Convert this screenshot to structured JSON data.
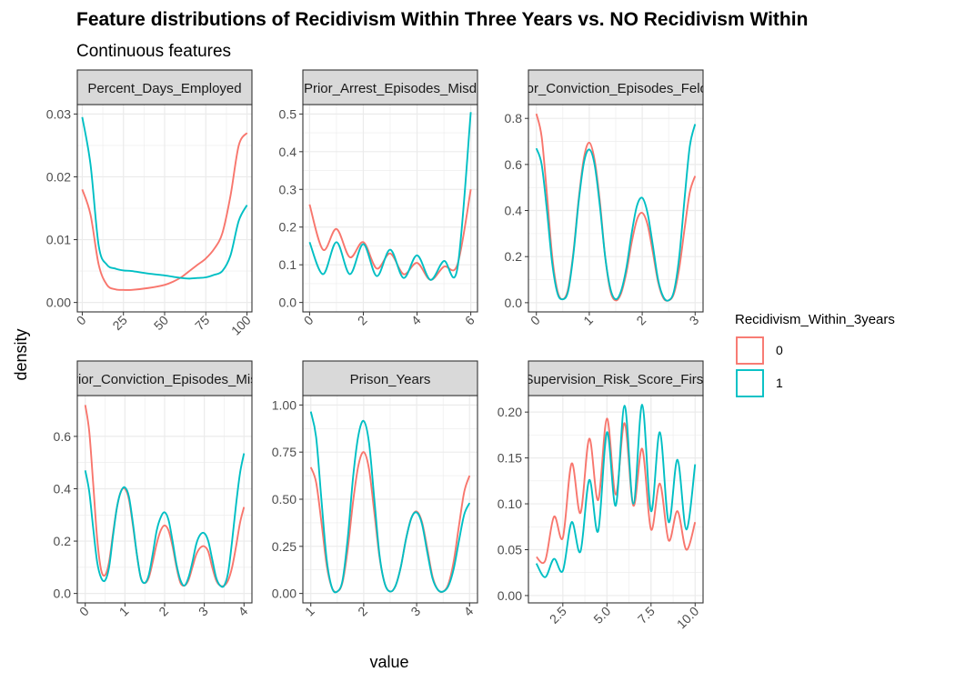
{
  "title": "Feature distributions of Recidivism Within Three Years vs. NO Recidivism Within",
  "subtitle": "Continuous features",
  "xlabel": "value",
  "ylabel": "density",
  "legend": {
    "title": "Recidivism_Within_3years",
    "position": "right",
    "entries": [
      {
        "label": "0",
        "color": "#F8766D"
      },
      {
        "label": "1",
        "color": "#00BFC4"
      }
    ]
  },
  "colors": {
    "strip_fill": "#d9d9d9",
    "grid": "#ebebeb",
    "panel_border": "#333333"
  },
  "chart_data": [
    {
      "type": "line",
      "strip": "Percent_Days_Employed",
      "xlim": [
        -3,
        103
      ],
      "ylim": [
        -0.0015,
        0.0315
      ],
      "xticks": [
        0,
        25,
        50,
        75,
        100
      ],
      "xtick_labels": [
        "0",
        "25",
        "50",
        "75",
        "100"
      ],
      "yticks": [
        0.0,
        0.01,
        0.02,
        0.03
      ],
      "ytick_labels": [
        "0.00",
        "0.01",
        "0.02",
        "0.03"
      ],
      "series": [
        {
          "name": "0",
          "x": [
            0,
            5,
            10,
            15,
            20,
            25,
            30,
            40,
            50,
            55,
            60,
            65,
            70,
            75,
            80,
            85,
            90,
            95,
            100
          ],
          "y": [
            0.018,
            0.014,
            0.006,
            0.0028,
            0.0021,
            0.002,
            0.002,
            0.0023,
            0.0028,
            0.0033,
            0.004,
            0.005,
            0.006,
            0.007,
            0.0085,
            0.011,
            0.017,
            0.025,
            0.027
          ]
        },
        {
          "name": "1",
          "x": [
            0,
            5,
            10,
            15,
            20,
            25,
            30,
            40,
            50,
            55,
            60,
            65,
            70,
            75,
            80,
            85,
            90,
            95,
            100
          ],
          "y": [
            0.0295,
            0.022,
            0.009,
            0.006,
            0.0054,
            0.0051,
            0.005,
            0.0046,
            0.0043,
            0.0041,
            0.0039,
            0.0038,
            0.0039,
            0.004,
            0.0044,
            0.005,
            0.0075,
            0.013,
            0.0155
          ]
        }
      ]
    },
    {
      "type": "line",
      "strip": "Prior_Arrest_Episodes_Misd",
      "xlim": [
        -0.25,
        6.25
      ],
      "ylim": [
        -0.025,
        0.525
      ],
      "xticks": [
        0,
        2,
        4,
        6
      ],
      "xtick_labels": [
        "0",
        "2",
        "4",
        "6"
      ],
      "yticks": [
        0.0,
        0.1,
        0.2,
        0.3,
        0.4,
        0.5
      ],
      "ytick_labels": [
        "0.0",
        "0.1",
        "0.2",
        "0.3",
        "0.4",
        "0.5"
      ],
      "series": [
        {
          "name": "0",
          "x": [
            0,
            0.5,
            1,
            1.5,
            2,
            2.5,
            3,
            3.5,
            4,
            4.5,
            5,
            5.5,
            6
          ],
          "y": [
            0.26,
            0.14,
            0.195,
            0.12,
            0.16,
            0.09,
            0.13,
            0.075,
            0.105,
            0.06,
            0.095,
            0.1,
            0.3
          ]
        },
        {
          "name": "1",
          "x": [
            0,
            0.5,
            1,
            1.5,
            2,
            2.5,
            3,
            3.5,
            4,
            4.5,
            5,
            5.5,
            6
          ],
          "y": [
            0.16,
            0.075,
            0.16,
            0.075,
            0.155,
            0.07,
            0.14,
            0.065,
            0.125,
            0.06,
            0.11,
            0.09,
            0.505
          ]
        }
      ]
    },
    {
      "type": "line",
      "strip": "Prior_Conviction_Episodes_Felony",
      "xlim": [
        -0.15,
        3.15
      ],
      "ylim": [
        -0.04,
        0.86
      ],
      "xticks": [
        0,
        1,
        2,
        3
      ],
      "xtick_labels": [
        "0",
        "1",
        "2",
        "3"
      ],
      "yticks": [
        0.0,
        0.2,
        0.4,
        0.6,
        0.8
      ],
      "ytick_labels": [
        "0.0",
        "0.2",
        "0.4",
        "0.6",
        "0.8"
      ],
      "series": [
        {
          "name": "0",
          "x": [
            0,
            0.1,
            0.2,
            0.3,
            0.4,
            0.5,
            0.6,
            0.7,
            0.8,
            0.9,
            1,
            1.1,
            1.2,
            1.3,
            1.4,
            1.5,
            1.6,
            1.7,
            1.8,
            1.9,
            2,
            2.1,
            2.2,
            2.3,
            2.4,
            2.5,
            2.6,
            2.7,
            2.8,
            2.9,
            3
          ],
          "y": [
            0.82,
            0.72,
            0.47,
            0.2,
            0.05,
            0.015,
            0.06,
            0.22,
            0.45,
            0.63,
            0.695,
            0.62,
            0.44,
            0.2,
            0.05,
            0.01,
            0.04,
            0.13,
            0.26,
            0.36,
            0.39,
            0.34,
            0.22,
            0.09,
            0.02,
            0.01,
            0.04,
            0.15,
            0.32,
            0.48,
            0.55
          ]
        },
        {
          "name": "1",
          "x": [
            0,
            0.1,
            0.2,
            0.3,
            0.4,
            0.5,
            0.6,
            0.7,
            0.8,
            0.9,
            1,
            1.1,
            1.2,
            1.3,
            1.4,
            1.5,
            1.6,
            1.7,
            1.8,
            1.9,
            2,
            2.1,
            2.2,
            2.3,
            2.4,
            2.5,
            2.6,
            2.7,
            2.8,
            2.9,
            3
          ],
          "y": [
            0.67,
            0.6,
            0.4,
            0.17,
            0.04,
            0.015,
            0.05,
            0.21,
            0.44,
            0.61,
            0.665,
            0.6,
            0.42,
            0.2,
            0.06,
            0.015,
            0.05,
            0.15,
            0.3,
            0.42,
            0.455,
            0.39,
            0.25,
            0.1,
            0.025,
            0.01,
            0.05,
            0.2,
            0.45,
            0.68,
            0.775
          ]
        }
      ]
    },
    {
      "type": "line",
      "strip": "Prior_Conviction_Episodes_Misd",
      "xlim": [
        -0.2,
        4.2
      ],
      "ylim": [
        -0.036,
        0.756
      ],
      "xticks": [
        0,
        1,
        2,
        3,
        4
      ],
      "xtick_labels": [
        "0",
        "1",
        "2",
        "3",
        "4"
      ],
      "yticks": [
        0.0,
        0.2,
        0.4,
        0.6
      ],
      "ytick_labels": [
        "0.0",
        "0.2",
        "0.4",
        "0.6"
      ],
      "series": [
        {
          "name": "0",
          "x": [
            0,
            0.1,
            0.2,
            0.3,
            0.4,
            0.5,
            0.6,
            0.7,
            0.8,
            0.9,
            1,
            1.1,
            1.2,
            1.3,
            1.4,
            1.5,
            1.6,
            1.7,
            1.8,
            1.9,
            2,
            2.1,
            2.2,
            2.3,
            2.4,
            2.5,
            2.6,
            2.7,
            2.8,
            2.9,
            3,
            3.1,
            3.2,
            3.3,
            3.4,
            3.5,
            3.6,
            3.7,
            3.8,
            3.9,
            4
          ],
          "y": [
            0.72,
            0.62,
            0.42,
            0.21,
            0.09,
            0.07,
            0.12,
            0.23,
            0.33,
            0.39,
            0.4,
            0.36,
            0.26,
            0.15,
            0.06,
            0.04,
            0.06,
            0.12,
            0.19,
            0.24,
            0.26,
            0.24,
            0.18,
            0.1,
            0.04,
            0.03,
            0.05,
            0.1,
            0.15,
            0.175,
            0.18,
            0.16,
            0.1,
            0.05,
            0.03,
            0.03,
            0.05,
            0.1,
            0.18,
            0.27,
            0.33
          ]
        },
        {
          "name": "1",
          "x": [
            0,
            0.1,
            0.2,
            0.3,
            0.4,
            0.5,
            0.6,
            0.7,
            0.8,
            0.9,
            1,
            1.1,
            1.2,
            1.3,
            1.4,
            1.5,
            1.6,
            1.7,
            1.8,
            1.9,
            2,
            2.1,
            2.2,
            2.3,
            2.4,
            2.5,
            2.6,
            2.7,
            2.8,
            2.9,
            3,
            3.1,
            3.2,
            3.3,
            3.4,
            3.5,
            3.6,
            3.7,
            3.8,
            3.9,
            4
          ],
          "y": [
            0.47,
            0.39,
            0.25,
            0.12,
            0.06,
            0.05,
            0.1,
            0.22,
            0.33,
            0.39,
            0.405,
            0.37,
            0.27,
            0.15,
            0.06,
            0.04,
            0.07,
            0.15,
            0.24,
            0.29,
            0.31,
            0.28,
            0.2,
            0.11,
            0.05,
            0.03,
            0.06,
            0.12,
            0.19,
            0.225,
            0.23,
            0.2,
            0.13,
            0.06,
            0.03,
            0.03,
            0.08,
            0.2,
            0.34,
            0.46,
            0.535
          ]
        }
      ]
    },
    {
      "type": "line",
      "strip": "Prison_Years",
      "xlim": [
        0.85,
        4.15
      ],
      "ylim": [
        -0.05,
        1.05
      ],
      "xticks": [
        1,
        2,
        3,
        4
      ],
      "xtick_labels": [
        "1",
        "2",
        "3",
        "4"
      ],
      "yticks": [
        0.0,
        0.25,
        0.5,
        0.75,
        1.0
      ],
      "ytick_labels": [
        "0.00",
        "0.25",
        "0.50",
        "0.75",
        "1.00"
      ],
      "series": [
        {
          "name": "0",
          "x": [
            1,
            1.1,
            1.2,
            1.3,
            1.4,
            1.5,
            1.6,
            1.7,
            1.8,
            1.9,
            2,
            2.1,
            2.2,
            2.3,
            2.4,
            2.5,
            2.6,
            2.7,
            2.8,
            2.9,
            3,
            3.1,
            3.2,
            3.3,
            3.4,
            3.5,
            3.6,
            3.7,
            3.8,
            3.9,
            4
          ],
          "y": [
            0.67,
            0.59,
            0.38,
            0.15,
            0.03,
            0.01,
            0.06,
            0.24,
            0.49,
            0.68,
            0.75,
            0.66,
            0.43,
            0.19,
            0.05,
            0.01,
            0.04,
            0.14,
            0.29,
            0.4,
            0.435,
            0.38,
            0.24,
            0.09,
            0.02,
            0.01,
            0.05,
            0.17,
            0.36,
            0.54,
            0.625
          ]
        },
        {
          "name": "1",
          "x": [
            1,
            1.1,
            1.2,
            1.3,
            1.4,
            1.5,
            1.6,
            1.7,
            1.8,
            1.9,
            2,
            2.1,
            2.2,
            2.3,
            2.4,
            2.5,
            2.6,
            2.7,
            2.8,
            2.9,
            3,
            3.1,
            3.2,
            3.3,
            3.4,
            3.5,
            3.6,
            3.7,
            3.8,
            3.9,
            4
          ],
          "y": [
            0.965,
            0.83,
            0.5,
            0.18,
            0.03,
            0.01,
            0.07,
            0.3,
            0.62,
            0.84,
            0.915,
            0.8,
            0.5,
            0.2,
            0.05,
            0.01,
            0.04,
            0.14,
            0.29,
            0.4,
            0.43,
            0.37,
            0.22,
            0.08,
            0.02,
            0.01,
            0.04,
            0.13,
            0.28,
            0.42,
            0.48
          ]
        }
      ]
    },
    {
      "type": "line",
      "strip": "Supervision_Risk_Score_First",
      "xlim": [
        0.55,
        10.45
      ],
      "ylim": [
        -0.008,
        0.218
      ],
      "xticks": [
        2.5,
        5.0,
        7.5,
        10.0
      ],
      "xtick_labels": [
        "2.5",
        "5.0",
        "7.5",
        "10.0"
      ],
      "yticks": [
        0.0,
        0.05,
        0.1,
        0.15,
        0.2
      ],
      "ytick_labels": [
        "0.00",
        "0.05",
        "0.10",
        "0.15",
        "0.20"
      ],
      "series": [
        {
          "name": "0",
          "x": [
            1,
            1.5,
            2,
            2.5,
            3,
            3.5,
            4,
            4.5,
            5,
            5.5,
            6,
            6.5,
            7,
            7.5,
            8,
            8.5,
            9,
            9.5,
            10
          ],
          "y": [
            0.042,
            0.038,
            0.086,
            0.063,
            0.144,
            0.09,
            0.171,
            0.104,
            0.193,
            0.11,
            0.188,
            0.098,
            0.16,
            0.072,
            0.122,
            0.06,
            0.092,
            0.05,
            0.08
          ]
        },
        {
          "name": "1",
          "x": [
            1,
            1.5,
            2,
            2.5,
            3,
            3.5,
            4,
            4.5,
            5,
            5.5,
            6,
            6.5,
            7,
            7.5,
            8,
            8.5,
            9,
            9.5,
            10
          ],
          "y": [
            0.035,
            0.02,
            0.04,
            0.027,
            0.08,
            0.048,
            0.126,
            0.07,
            0.178,
            0.098,
            0.207,
            0.1,
            0.208,
            0.092,
            0.178,
            0.08,
            0.148,
            0.072,
            0.143
          ]
        }
      ]
    }
  ]
}
